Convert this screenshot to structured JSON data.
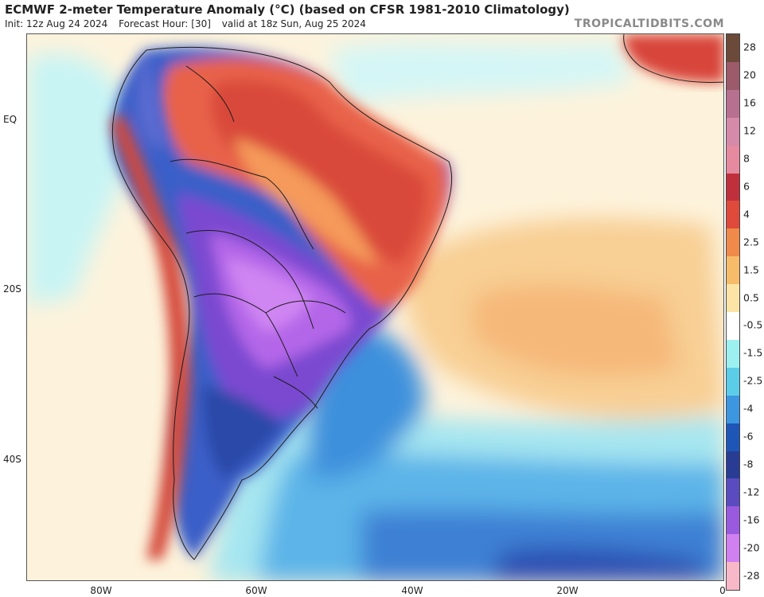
{
  "header": {
    "title": "ECMWF 2-meter Temperature Anomaly (°C) (based on CFSR 1981-2010 Climatology)",
    "init": "Init: 12z Aug 24 2024",
    "forecast_hour": "Forecast Hour: [30]",
    "valid": "valid at 18z Sun, Aug 25 2024",
    "brand": "TROPICALTIDBITS.COM"
  },
  "axes": {
    "lat_labels": [
      "EQ",
      "20S",
      "40S"
    ],
    "lon_labels": [
      "80W",
      "60W",
      "40W",
      "20W",
      "0"
    ]
  },
  "colorbar": {
    "labels": [
      "28",
      "20",
      "16",
      "12",
      "8",
      "6",
      "4",
      "2.5",
      "1.5",
      "0.5",
      "-0.5",
      "-1.5",
      "-2.5",
      "-4",
      "-6",
      "-8",
      "-12",
      "-16",
      "-20",
      "-28"
    ],
    "colors": [
      "#6b4a3a",
      "#9c5a6a",
      "#b87090",
      "#d48aa8",
      "#e68aa0",
      "#c0303c",
      "#e04a3a",
      "#f08a4a",
      "#f6bc6a",
      "#fbe4a6",
      "#ffffff",
      "#9cf0f0",
      "#5ccde8",
      "#3c96e0",
      "#1e56b8",
      "#283c94",
      "#5a4cc0",
      "#9a5ae0",
      "#d080f0",
      "#f8b8c8"
    ]
  },
  "regions": {
    "warm": "warm-anomaly",
    "cold": "cold-anomaly"
  }
}
